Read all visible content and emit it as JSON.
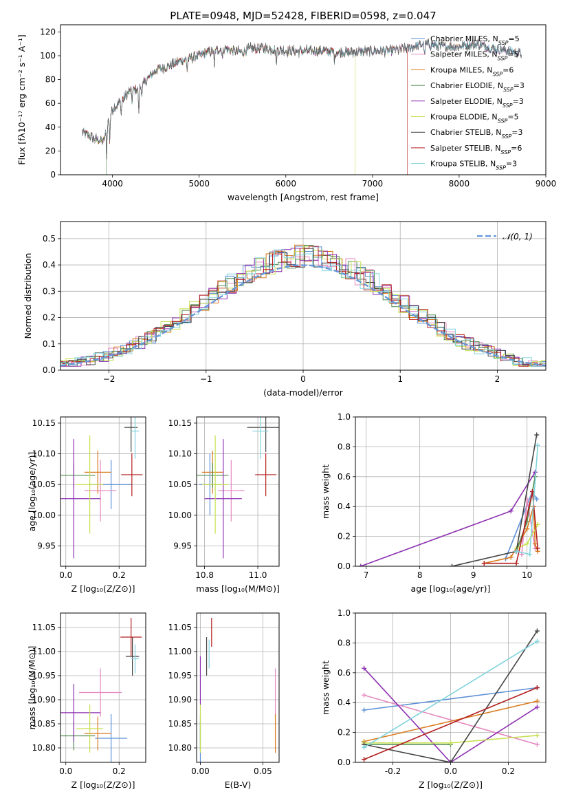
{
  "colors": {
    "Chabrier MILES": "#5b8fd6",
    "Salpeter MILES": "#e58ac0",
    "Kroupa MILES": "#d97b1f",
    "Chabrier ELODIE": "#4f8a4f",
    "Salpeter ELODIE": "#8c2fb0",
    "Kroupa ELODIE": "#c6e04f",
    "Chabrier STELIB": "#444444",
    "Salpeter STELIB": "#b21d1d",
    "Kroupa STELIB": "#7fd3dc"
  },
  "chart_data": [
    {
      "id": "spectrum",
      "type": "line",
      "title": "PLATE=0948, MJD=52428, FIBERID=0598, z=0.047",
      "xlabel": "wavelength [Angstrom, rest frame]",
      "ylabel": "Flux [fλ10⁻¹⁷ erg cm⁻² s⁻¹ A⁻¹]",
      "xlim": [
        3400,
        9000
      ],
      "ylim": [
        0,
        126
      ],
      "xticks": [
        4000,
        5000,
        6000,
        7000,
        8000,
        9000
      ],
      "yticks": [
        0,
        20,
        40,
        60,
        80,
        100,
        120
      ],
      "legend_position": "right",
      "series": [
        {
          "name": "Chabrier MILES, N$_{SSP}$=5",
          "label": "Chabrier MILES, N",
          "nssp": "5"
        },
        {
          "name": "Salpeter MILES, N$_{SSP}$=5",
          "label": "Salpeter MILES, N",
          "nssp": "5"
        },
        {
          "name": "Kroupa MILES, N$_{SSP}$=6",
          "label": "Kroupa MILES, N",
          "nssp": "6"
        },
        {
          "name": "Chabrier ELODIE, N$_{SSP}$=3",
          "label": "Chabrier ELODIE, N",
          "nssp": "3"
        },
        {
          "name": "Salpeter ELODIE, N$_{SSP}$=3",
          "label": "Salpeter ELODIE, N",
          "nssp": "3"
        },
        {
          "name": "Kroupa ELODIE, N$_{SSP}$=5",
          "label": "Kroupa ELODIE, N",
          "nssp": "5"
        },
        {
          "name": "Chabrier STELIB, N$_{SSP}$=3",
          "label": "Chabrier STELIB, N",
          "nssp": "3"
        },
        {
          "name": "Salpeter STELIB, N$_{SSP}$=6",
          "label": "Salpeter STELIB, N",
          "nssp": "6"
        },
        {
          "name": "Kroupa STELIB, N$_{SSP}$=3",
          "label": "Kroupa STELIB, N",
          "nssp": "3"
        }
      ],
      "continuum": [
        [
          3650,
          36
        ],
        [
          3700,
          34
        ],
        [
          3800,
          30
        ],
        [
          3900,
          28
        ],
        [
          3950,
          45
        ],
        [
          4000,
          55
        ],
        [
          4100,
          62
        ],
        [
          4200,
          70
        ],
        [
          4300,
          72
        ],
        [
          4400,
          80
        ],
        [
          4500,
          88
        ],
        [
          4600,
          90
        ],
        [
          4700,
          93
        ],
        [
          4800,
          96
        ],
        [
          4900,
          98
        ],
        [
          5000,
          100
        ],
        [
          5100,
          103
        ],
        [
          5200,
          105
        ],
        [
          5300,
          106
        ],
        [
          5400,
          104
        ],
        [
          5500,
          103
        ],
        [
          5600,
          106
        ],
        [
          5800,
          106
        ],
        [
          6000,
          104
        ],
        [
          6200,
          104
        ],
        [
          6400,
          104
        ],
        [
          6600,
          103
        ],
        [
          6800,
          103
        ],
        [
          7000,
          104
        ],
        [
          7200,
          104
        ],
        [
          7400,
          106
        ],
        [
          7600,
          110
        ],
        [
          7800,
          108
        ],
        [
          8000,
          108
        ],
        [
          8200,
          110
        ],
        [
          8400,
          106
        ],
        [
          8600,
          104
        ],
        [
          8700,
          102
        ]
      ],
      "absorption_lines": [
        [
          3933,
          22
        ],
        [
          3968,
          20
        ],
        [
          4101,
          12
        ],
        [
          4226,
          8
        ],
        [
          4304,
          22
        ],
        [
          4340,
          8
        ],
        [
          4861,
          10
        ],
        [
          5175,
          16
        ],
        [
          5270,
          8
        ],
        [
          5890,
          14
        ],
        [
          6563,
          8
        ],
        [
          7600,
          10
        ]
      ],
      "model_cutoffs": [
        {
          "series": "Salpeter STELIB",
          "end": 7400
        },
        {
          "series": "Kroupa ELODIE",
          "end": 6800
        },
        {
          "series": "Chabrier ELODIE",
          "end": 3930
        }
      ]
    },
    {
      "id": "residuals",
      "type": "line",
      "xlabel": "(data-model)/error",
      "ylabel": "Normed distribution",
      "xlim": [
        -2.5,
        2.5
      ],
      "ylim": [
        0,
        0.565
      ],
      "xticks": [
        -2,
        -1,
        0,
        1,
        2
      ],
      "yticks": [
        0,
        0.1,
        0.2,
        0.3,
        0.4,
        0.5
      ],
      "grid": true,
      "legend_position": "top-right",
      "legend": [
        "𝒩(0, 1)"
      ],
      "reference_curve": "normal(0,1) pdf"
    },
    {
      "id": "age-vs-Z",
      "type": "scatter",
      "xlabel": "Z [log₁₀(Z/Z⊙)]",
      "ylabel": "age  [log₁₀(age/yr)]",
      "xlim": [
        -0.02,
        0.3
      ],
      "ylim": [
        9.917,
        10.16
      ],
      "xticks": [
        0.0,
        0.2
      ],
      "yticks": [
        9.95,
        10.0,
        10.05,
        10.1,
        10.15
      ],
      "grid": true,
      "points": [
        {
          "series": "Chabrier MILES",
          "x": 0.17,
          "y": 10.05,
          "xerr": 0.08,
          "yerr": 0.04
        },
        {
          "series": "Salpeter MILES",
          "x": 0.13,
          "y": 10.04,
          "xerr": 0.06,
          "yerr": 0.05
        },
        {
          "series": "Kroupa MILES",
          "x": 0.12,
          "y": 10.07,
          "xerr": 0.05,
          "yerr": 0.035
        },
        {
          "series": "Chabrier ELODIE",
          "x": 0.03,
          "y": 10.065,
          "xerr": 0.08,
          "yerr": 0.02
        },
        {
          "series": "Salpeter ELODIE",
          "x": 0.03,
          "y": 10.027,
          "xerr": 0.1,
          "yerr": 0.097
        },
        {
          "series": "Kroupa ELODIE",
          "x": 0.09,
          "y": 10.05,
          "xerr": 0.05,
          "yerr": 0.08
        },
        {
          "series": "Chabrier STELIB",
          "x": 0.245,
          "y": 10.143,
          "xerr": 0.025,
          "yerr": 0.04
        },
        {
          "series": "Salpeter STELIB",
          "x": 0.248,
          "y": 10.066,
          "xerr": 0.04,
          "yerr": 0.035
        },
        {
          "series": "Kroupa STELIB",
          "x": 0.26,
          "y": 10.137,
          "xerr": 0.015,
          "yerr": 0.045
        }
      ]
    },
    {
      "id": "age-vs-mass",
      "type": "scatter",
      "xlabel": "mass [log₁₀(M/M⊙)]",
      "ylabel": "",
      "xlim": [
        10.77,
        11.08
      ],
      "ylim": [
        9.917,
        10.16
      ],
      "xticks": [
        10.8,
        11.0
      ],
      "yticks": [
        9.95,
        10.0,
        10.05,
        10.1,
        10.15
      ],
      "grid": true,
      "points": [
        {
          "series": "Chabrier MILES",
          "x": 10.82,
          "y": 10.05,
          "xerr": 0.04,
          "yerr": 0.05
        },
        {
          "series": "Salpeter MILES",
          "x": 10.9,
          "y": 10.04,
          "xerr": 0.05,
          "yerr": 0.05
        },
        {
          "series": "Kroupa MILES",
          "x": 10.83,
          "y": 10.07,
          "xerr": 0.04,
          "yerr": 0.035
        },
        {
          "series": "Chabrier ELODIE",
          "x": 10.83,
          "y": 10.065,
          "xerr": 0.06,
          "yerr": 0.02
        },
        {
          "series": "Salpeter ELODIE",
          "x": 10.87,
          "y": 10.027,
          "xerr": 0.07,
          "yerr": 0.097
        },
        {
          "series": "Kroupa ELODIE",
          "x": 10.84,
          "y": 10.05,
          "xerr": 0.05,
          "yerr": 0.08
        },
        {
          "series": "Chabrier STELIB",
          "x": 11.03,
          "y": 10.143,
          "xerr": 0.07,
          "yerr": 0.04
        },
        {
          "series": "Salpeter STELIB",
          "x": 11.03,
          "y": 10.066,
          "xerr": 0.04,
          "yerr": 0.035
        },
        {
          "series": "Kroupa STELIB",
          "x": 11.01,
          "y": 10.137,
          "xerr": 0.03,
          "yerr": 0.045
        }
      ]
    },
    {
      "id": "weight-vs-age",
      "type": "line",
      "xlabel": "age  [log₁₀(age/yr)]",
      "ylabel": "mass weight",
      "xlim": [
        6.8,
        10.35
      ],
      "ylim": [
        0,
        1.0
      ],
      "xticks": [
        7,
        8,
        9,
        10
      ],
      "yticks": [
        0,
        0.2,
        0.4,
        0.6,
        0.8,
        1.0
      ],
      "grid": true,
      "series": [
        {
          "name": "Chabrier MILES",
          "x": [
            9.6,
            10.1,
            10.18
          ],
          "y": [
            0.05,
            0.5,
            0.45
          ]
        },
        {
          "name": "Salpeter MILES",
          "x": [
            9.9,
            10.0,
            10.15
          ],
          "y": [
            0.08,
            0.45,
            0.12
          ]
        },
        {
          "name": "Kroupa MILES",
          "x": [
            9.2,
            9.7,
            10.0,
            10.12,
            10.15,
            10.2
          ],
          "y": [
            0.02,
            0.06,
            0.25,
            0.4,
            0.15,
            0.1
          ]
        },
        {
          "name": "Chabrier ELODIE",
          "x": [
            9.8,
            10.0,
            10.15
          ],
          "y": [
            0.1,
            0.3,
            0.6
          ]
        },
        {
          "name": "Salpeter ELODIE",
          "x": [
            6.9,
            9.7,
            10.15
          ],
          "y": [
            0.0,
            0.37,
            0.63
          ]
        },
        {
          "name": "Kroupa ELODIE",
          "x": [
            9.8,
            10.0,
            10.2
          ],
          "y": [
            0.12,
            0.15,
            0.28
          ]
        },
        {
          "name": "Chabrier STELIB",
          "x": [
            8.6,
            9.8,
            10.18
          ],
          "y": [
            0.0,
            0.1,
            0.88
          ]
        },
        {
          "name": "Salpeter STELIB",
          "x": [
            9.2,
            9.8,
            10.1,
            10.2
          ],
          "y": [
            0.02,
            0.02,
            0.5,
            0.12
          ]
        },
        {
          "name": "Kroupa STELIB",
          "x": [
            9.8,
            10.05,
            10.2
          ],
          "y": [
            0.1,
            0.08,
            0.81
          ]
        }
      ]
    },
    {
      "id": "mass-vs-Z",
      "type": "scatter",
      "xlabel": "Z [log₁₀(Z/Z⊙)]",
      "ylabel": "mass [log₁₀(M/M⊙)]",
      "xlim": [
        -0.02,
        0.3
      ],
      "ylim": [
        10.77,
        11.08
      ],
      "xticks": [
        0.0,
        0.2
      ],
      "yticks": [
        10.8,
        10.85,
        10.9,
        10.95,
        11.0,
        11.05
      ],
      "grid": true,
      "points": [
        {
          "series": "Chabrier MILES",
          "x": 0.17,
          "y": 10.82,
          "xerr": 0.06,
          "yerr": 0.05
        },
        {
          "series": "Salpeter MILES",
          "x": 0.13,
          "y": 10.915,
          "xerr": 0.08,
          "yerr": 0.05
        },
        {
          "series": "Kroupa MILES",
          "x": 0.12,
          "y": 10.83,
          "xerr": 0.05,
          "yerr": 0.035
        },
        {
          "series": "Chabrier ELODIE",
          "x": 0.03,
          "y": 10.825,
          "xerr": 0.08,
          "yerr": 0.03
        },
        {
          "series": "Salpeter ELODIE",
          "x": 0.03,
          "y": 10.873,
          "xerr": 0.1,
          "yerr": 0.06
        },
        {
          "series": "Kroupa ELODIE",
          "x": 0.09,
          "y": 10.84,
          "xerr": 0.05,
          "yerr": 0.05
        },
        {
          "series": "Chabrier STELIB",
          "x": 0.25,
          "y": 10.99,
          "xerr": 0.025,
          "yerr": 0.04
        },
        {
          "series": "Salpeter STELIB",
          "x": 0.245,
          "y": 11.03,
          "xerr": 0.04,
          "yerr": 0.04
        },
        {
          "series": "Kroupa STELIB",
          "x": 0.26,
          "y": 10.985,
          "xerr": 0.015,
          "yerr": 0.03
        }
      ]
    },
    {
      "id": "mass-vs-EBV",
      "type": "scatter",
      "xlabel": "E(B-V)",
      "ylabel": "",
      "xlim": [
        -0.003,
        0.063
      ],
      "ylim": [
        10.77,
        11.08
      ],
      "xticks": [
        0.0,
        0.05
      ],
      "yticks": [
        10.8,
        10.85,
        10.9,
        10.95,
        11.0,
        11.05
      ],
      "grid": true,
      "points": [
        {
          "series": "Chabrier MILES",
          "x": 0.0,
          "y": 10.82,
          "xerr": 0.0,
          "yerr": 0.05
        },
        {
          "series": "Salpeter MILES",
          "x": 0.06,
          "y": 10.915,
          "xerr": 0.0,
          "yerr": 0.05
        },
        {
          "series": "Kroupa MILES",
          "x": 0.06,
          "y": 10.83,
          "xerr": 0.0,
          "yerr": 0.04
        },
        {
          "series": "Chabrier ELODIE",
          "x": 0.0,
          "y": 10.825,
          "xerr": 0.0,
          "yerr": 0.03
        },
        {
          "series": "Salpeter ELODIE",
          "x": 0.0,
          "y": 10.94,
          "xerr": 0.0,
          "yerr": 0.05
        },
        {
          "series": "Kroupa ELODIE",
          "x": 0.0,
          "y": 10.84,
          "xerr": 0.0,
          "yerr": 0.05
        },
        {
          "series": "Chabrier STELIB",
          "x": 0.005,
          "y": 10.99,
          "xerr": 0.0,
          "yerr": 0.04
        },
        {
          "series": "Salpeter STELIB",
          "x": 0.009,
          "y": 11.04,
          "xerr": 0.0,
          "yerr": 0.03
        },
        {
          "series": "Kroupa STELIB",
          "x": 0.007,
          "y": 10.995,
          "xerr": 0.0,
          "yerr": 0.03
        }
      ]
    },
    {
      "id": "weight-vs-Z",
      "type": "line",
      "xlabel": "Z [log₁₀(Z/Z⊙)]",
      "ylabel": "mass weight",
      "xlim": [
        -0.33,
        0.33
      ],
      "ylim": [
        0,
        1.0
      ],
      "xticks": [
        -0.2,
        0.0,
        0.2
      ],
      "yticks": [
        0,
        0.2,
        0.4,
        0.6,
        0.8,
        1.0
      ],
      "grid": true,
      "series": [
        {
          "name": "Chabrier MILES",
          "x": [
            -0.3,
            0.3
          ],
          "y": [
            0.35,
            0.5
          ]
        },
        {
          "name": "Salpeter MILES",
          "x": [
            -0.3,
            0.3
          ],
          "y": [
            0.45,
            0.12
          ]
        },
        {
          "name": "Kroupa MILES",
          "x": [
            -0.3,
            0.3
          ],
          "y": [
            0.14,
            0.41
          ]
        },
        {
          "name": "Chabrier ELODIE",
          "x": [
            -0.3,
            0.0
          ],
          "y": [
            0.12,
            0.12
          ]
        },
        {
          "name": "Salpeter ELODIE",
          "x": [
            -0.3,
            0.0,
            0.3
          ],
          "y": [
            0.63,
            0.0,
            0.37
          ]
        },
        {
          "name": "Kroupa ELODIE",
          "x": [
            -0.3,
            0.0,
            0.3
          ],
          "y": [
            0.13,
            0.13,
            0.18
          ]
        },
        {
          "name": "Chabrier STELIB",
          "x": [
            -0.3,
            0.0,
            0.3
          ],
          "y": [
            0.12,
            0.0,
            0.88
          ]
        },
        {
          "name": "Salpeter STELIB",
          "x": [
            -0.3,
            0.3
          ],
          "y": [
            0.02,
            0.5
          ]
        },
        {
          "name": "Kroupa STELIB",
          "x": [
            -0.3,
            0.3
          ],
          "y": [
            0.1,
            0.81
          ]
        }
      ]
    }
  ]
}
